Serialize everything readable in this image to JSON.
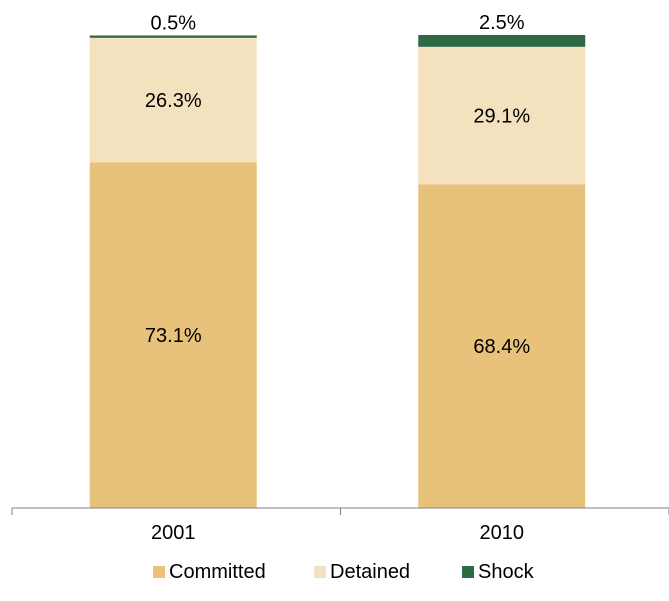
{
  "chart_data": {
    "type": "bar",
    "stacked": true,
    "normalized_percent": true,
    "categories": [
      "2001",
      "2010"
    ],
    "series": [
      {
        "name": "Committed",
        "values": [
          73.1,
          68.4
        ],
        "labels": [
          "73.1%",
          "68.4%"
        ],
        "color": "#E8C27A"
      },
      {
        "name": "Detained",
        "values": [
          26.3,
          29.1
        ],
        "labels": [
          "26.3%",
          "29.1%"
        ],
        "color": "#F4E2BE"
      },
      {
        "name": "Shock",
        "values": [
          0.5,
          2.5
        ],
        "labels": [
          "0.5%",
          "2.5%"
        ],
        "color": "#2E6B45"
      }
    ],
    "ylim": [
      0,
      100
    ],
    "grid": false,
    "legend": "bottom"
  }
}
